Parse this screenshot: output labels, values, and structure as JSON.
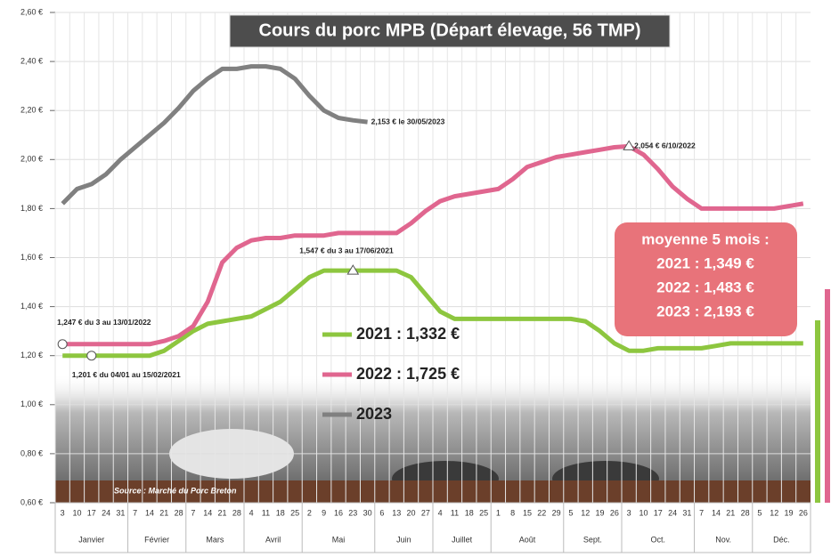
{
  "chart_data": {
    "type": "line",
    "title": "Cours du porc MPB (Départ élevage, 56 TMP)",
    "categories": [
      "3",
      "10",
      "17",
      "24",
      "31",
      "7",
      "14",
      "21",
      "28",
      "7",
      "14",
      "21",
      "28",
      "4",
      "11",
      "18",
      "25",
      "2",
      "9",
      "16",
      "23",
      "30",
      "6",
      "13",
      "20",
      "27",
      "4",
      "11",
      "18",
      "25",
      "1",
      "8",
      "15",
      "22",
      "29",
      "5",
      "12",
      "19",
      "26",
      "3",
      "10",
      "17",
      "24",
      "31",
      "7",
      "14",
      "21",
      "28",
      "5",
      "12",
      "19",
      "26"
    ],
    "months": [
      "Janvier",
      "Février",
      "Mars",
      "Avril",
      "Mai",
      "Juin",
      "Juillet",
      "Août",
      "Sept.",
      "Oct.",
      "Nov.",
      "Déc."
    ],
    "series": [
      {
        "name": "2021 : 1,332 €",
        "color": "#8dc63f",
        "values": [
          1.2,
          1.2,
          1.2,
          1.2,
          1.2,
          1.2,
          1.2,
          1.22,
          1.26,
          1.3,
          1.33,
          1.34,
          1.35,
          1.36,
          1.39,
          1.42,
          1.47,
          1.52,
          1.547,
          1.547,
          1.547,
          1.547,
          1.547,
          1.547,
          1.52,
          1.45,
          1.38,
          1.35,
          1.35,
          1.35,
          1.35,
          1.35,
          1.35,
          1.35,
          1.35,
          1.35,
          1.34,
          1.3,
          1.25,
          1.22,
          1.22,
          1.23,
          1.23,
          1.23,
          1.23,
          1.24,
          1.25,
          1.25,
          1.25,
          1.25,
          1.25,
          1.25
        ]
      },
      {
        "name": "2022 : 1,725 €",
        "color": "#e0668f",
        "values": [
          1.247,
          1.247,
          1.247,
          1.247,
          1.247,
          1.247,
          1.247,
          1.26,
          1.28,
          1.32,
          1.42,
          1.58,
          1.64,
          1.67,
          1.68,
          1.68,
          1.69,
          1.69,
          1.69,
          1.7,
          1.7,
          1.7,
          1.7,
          1.7,
          1.74,
          1.79,
          1.83,
          1.85,
          1.86,
          1.87,
          1.88,
          1.92,
          1.97,
          1.99,
          2.01,
          2.02,
          2.03,
          2.04,
          2.05,
          2.054,
          2.02,
          1.96,
          1.89,
          1.84,
          1.8,
          1.8,
          1.8,
          1.8,
          1.8,
          1.8,
          1.81,
          1.82
        ]
      },
      {
        "name": "2023",
        "color": "#808080",
        "values": [
          1.82,
          1.88,
          1.9,
          1.94,
          2.0,
          2.05,
          2.1,
          2.15,
          2.21,
          2.28,
          2.33,
          2.37,
          2.37,
          2.38,
          2.38,
          2.37,
          2.33,
          2.26,
          2.2,
          2.17,
          2.16,
          2.153,
          null,
          null,
          null,
          null,
          null,
          null,
          null,
          null,
          null,
          null,
          null,
          null,
          null,
          null,
          null,
          null,
          null,
          null,
          null,
          null,
          null,
          null,
          null,
          null,
          null,
          null,
          null,
          null,
          null,
          null
        ]
      }
    ],
    "ylim": [
      0.6,
      2.6
    ],
    "yticks": [
      {
        "value": 0.6,
        "label": "0,60 €"
      },
      {
        "value": 0.8,
        "label": "0,80 €"
      },
      {
        "value": 1.0,
        "label": "1,00 €"
      },
      {
        "value": 1.2,
        "label": "1,20 €"
      },
      {
        "value": 1.4,
        "label": "1,40 €"
      },
      {
        "value": 1.6,
        "label": "1,60 €"
      },
      {
        "value": 1.8,
        "label": "1,80 €"
      },
      {
        "value": 2.0,
        "label": "2,00 €"
      },
      {
        "value": 2.2,
        "label": "2,20 €"
      },
      {
        "value": 2.4,
        "label": "2,40 €"
      },
      {
        "value": 2.6,
        "label": "2,60 €"
      }
    ],
    "grid": true,
    "annotations": [
      "2,153 € le 30/05/2023",
      "2,054 € 6/10/2022",
      "1,547 € du 3 au 17/06/2021",
      "1,247 € du 3 au 13/01/2022",
      "1,201 € du 04/01 au 15/02/2021"
    ],
    "source": "Source : Marché du Porc Breton",
    "average_box": {
      "title": "moyenne 5 mois :",
      "lines": [
        "2021 : 1,349 €",
        "2022 : 1,483 €",
        "2023 : 2,193 €"
      ]
    }
  }
}
